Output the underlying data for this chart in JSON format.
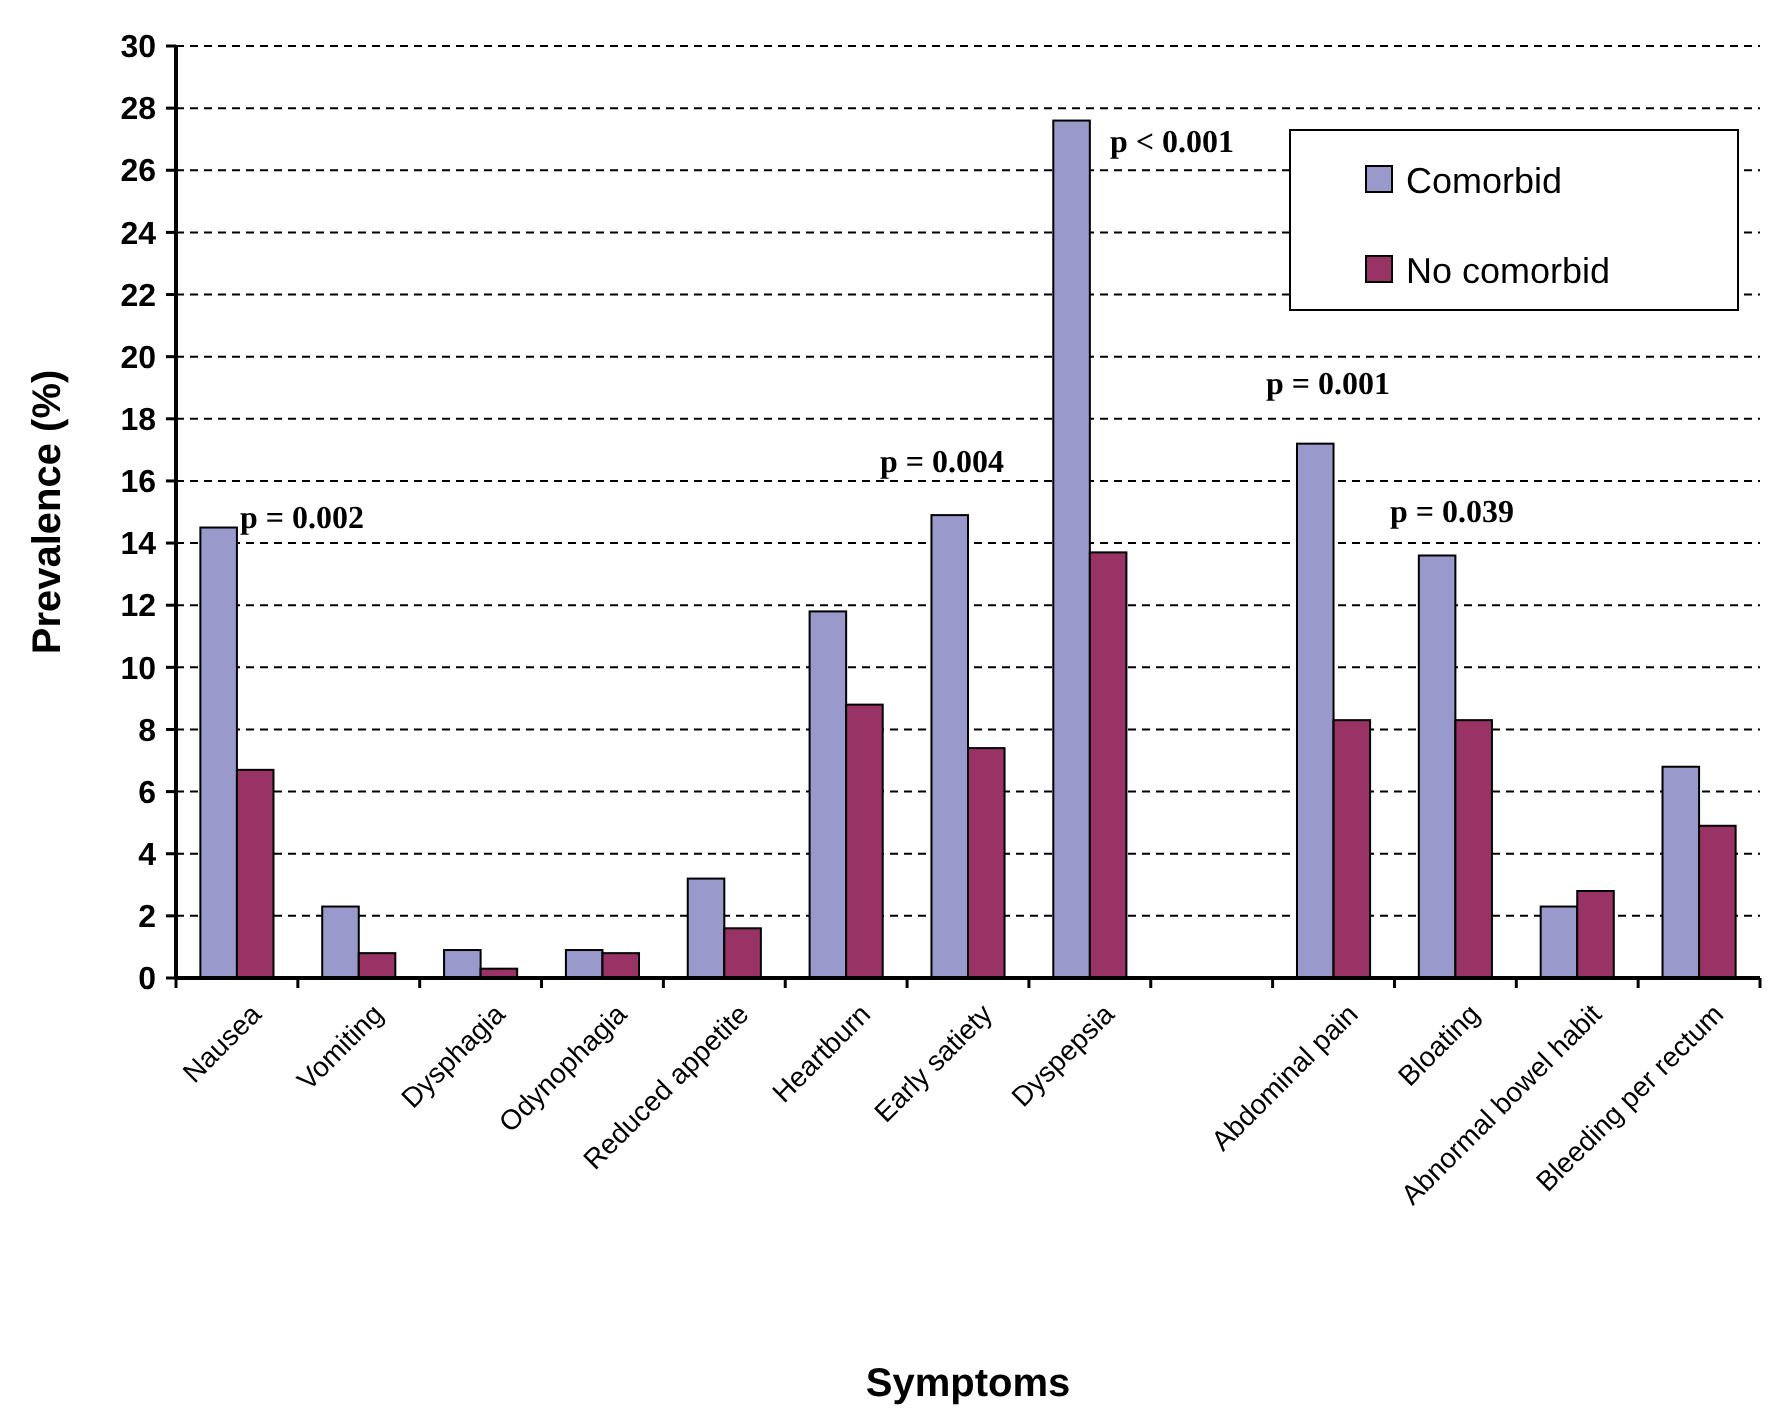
{
  "chart_data": {
    "type": "bar",
    "xlabel": "Symptoms",
    "ylabel": "Prevalence (%)",
    "categories": [
      "Nausea",
      "Vomiting",
      "Dysphagia",
      "Odynophagia",
      "Reduced appetite",
      "Heartburn",
      "Early satiety",
      "Dyspepsia",
      null,
      "Abdominal pain",
      "Bloating",
      "Abnormal bowel habit",
      "Bleeding per rectum"
    ],
    "series": [
      {
        "name": "Comorbid",
        "color": "#9999cc",
        "values": [
          14.5,
          2.3,
          0.9,
          0.9,
          3.2,
          11.8,
          14.9,
          27.6,
          null,
          17.2,
          13.6,
          2.3,
          6.8
        ]
      },
      {
        "name": "No comorbid",
        "color": "#993366",
        "values": [
          6.7,
          0.8,
          0.3,
          0.8,
          1.6,
          8.8,
          7.4,
          13.7,
          null,
          8.3,
          8.3,
          2.8,
          4.9
        ]
      }
    ],
    "ylim": [
      0,
      30
    ],
    "yticks": [
      0,
      2,
      4,
      6,
      8,
      10,
      12,
      14,
      16,
      18,
      20,
      22,
      24,
      26,
      28,
      30
    ],
    "grid": "y",
    "legend": "top right",
    "annotations": [
      "p = 0.002",
      "p = 0.004",
      "p < 0.001",
      "p = 0.001",
      "p = 0.039"
    ]
  }
}
